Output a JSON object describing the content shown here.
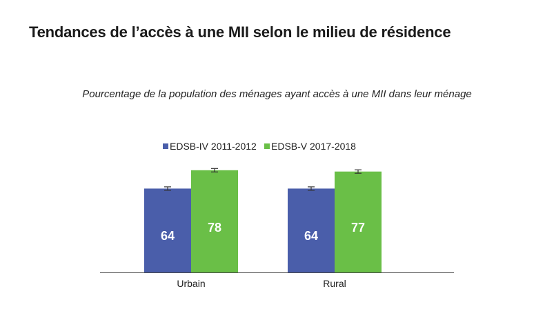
{
  "title": "Tendances de l’accès à une MII selon le milieu de résidence",
  "subtitle": "Pourcentage de la population des ménages ayant accès à une MII dans leur ménage",
  "chart_data": {
    "type": "bar",
    "categories": [
      "Urbain",
      "Rural"
    ],
    "series": [
      {
        "name": "EDSB-IV 2011-2012",
        "values": [
          64,
          64
        ],
        "color": "#4a5eaa"
      },
      {
        "name": "EDSB-V 2017-2018",
        "values": [
          78,
          77
        ],
        "color": "#6abf47"
      }
    ],
    "ylim": [
      0,
      100
    ],
    "error_bars": true,
    "legend_position": "top-center",
    "grid": false
  }
}
